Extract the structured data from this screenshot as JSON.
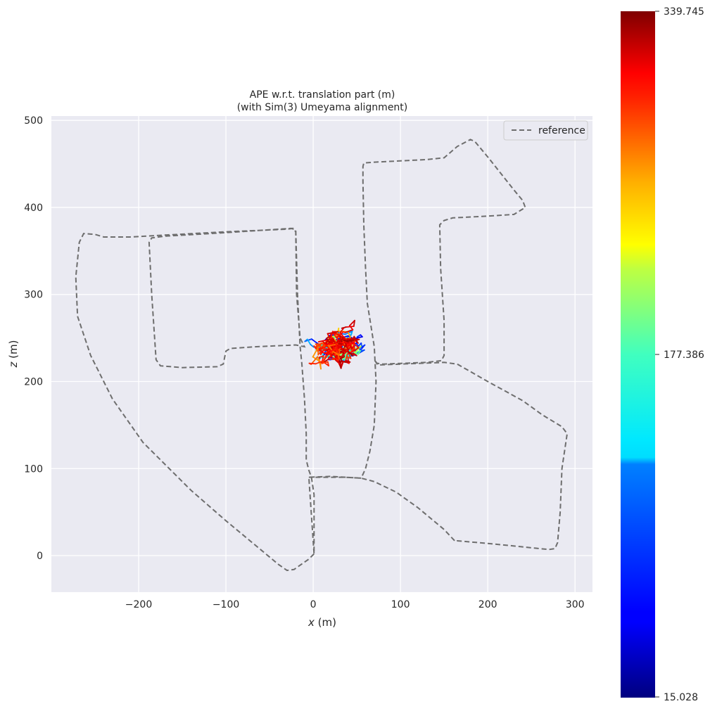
{
  "chart_data": {
    "type": "line",
    "title_line1": "APE w.r.t. translation part (m)",
    "title_line2": "(with Sim(3) Umeyama alignment)",
    "xlabel_var": "x",
    "xlabel_unit": " (m)",
    "ylabel_var": "z",
    "ylabel_unit": " (m)",
    "xlim": [
      -300,
      320
    ],
    "ylim": [
      -42,
      505
    ],
    "xticks": [
      -200,
      -100,
      0,
      100,
      200,
      300
    ],
    "xtick_labels": [
      "−200",
      "−100",
      "0",
      "100",
      "200",
      "300"
    ],
    "yticks": [
      0,
      100,
      200,
      300,
      400,
      500
    ],
    "ytick_labels": [
      "0",
      "100",
      "200",
      "300",
      "400",
      "500"
    ],
    "grid": true,
    "legend_position": "top-right",
    "colors": {
      "background": "#EAEAF2",
      "grid": "#FFFFFF",
      "reference": "#6E6E6E"
    },
    "colorbar": {
      "colormap": "jet",
      "min": 15.028,
      "mid": 177.386,
      "max": 339.745,
      "tick_labels": [
        "15.028",
        "177.386",
        "339.745"
      ]
    },
    "series": [
      {
        "name": "reference",
        "style": "dashed",
        "points": [
          [
            1,
            2
          ],
          [
            -5,
            -4
          ],
          [
            -22,
            -16
          ],
          [
            -30,
            -17
          ],
          [
            -40,
            -10
          ],
          [
            -100,
            40
          ],
          [
            -140,
            75
          ],
          [
            -195,
            130
          ],
          [
            -230,
            180
          ],
          [
            -255,
            230
          ],
          [
            -270,
            275
          ],
          [
            -272,
            320
          ],
          [
            -268,
            360
          ],
          [
            -263,
            370
          ],
          [
            -250,
            369
          ],
          [
            -240,
            366
          ],
          [
            -210,
            366
          ],
          [
            -175,
            368
          ],
          [
            -100,
            372
          ],
          [
            -30,
            375
          ],
          [
            -23,
            376
          ],
          [
            -20,
            372
          ],
          [
            -19,
            300
          ],
          [
            -15,
            250
          ],
          [
            -10,
            240
          ],
          [
            -20,
            242
          ],
          [
            -65,
            240
          ],
          [
            -95,
            238
          ],
          [
            -100,
            235
          ],
          [
            -103,
            220
          ],
          [
            -110,
            217
          ],
          [
            -150,
            216
          ],
          [
            -175,
            218
          ],
          [
            -180,
            225
          ],
          [
            -185,
            300
          ],
          [
            -188,
            360
          ],
          [
            -185,
            365
          ],
          [
            -170,
            367
          ],
          [
            -100,
            371
          ],
          [
            -25,
            376
          ],
          [
            -20,
            374
          ],
          [
            -18,
            300
          ],
          [
            -15,
            240
          ],
          [
            -13,
            220
          ],
          [
            -10,
            180
          ],
          [
            -8,
            140
          ],
          [
            -8,
            110
          ],
          [
            -5,
            98
          ],
          [
            -2,
            90
          ],
          [
            1,
            70
          ],
          [
            1,
            30
          ],
          [
            1,
            2
          ],
          [
            -5,
            90
          ],
          [
            20,
            91
          ],
          [
            55,
            89
          ],
          [
            60,
            100
          ],
          [
            65,
            120
          ],
          [
            70,
            150
          ],
          [
            72,
            200
          ],
          [
            70,
            240
          ],
          [
            62,
            290
          ],
          [
            60,
            330
          ],
          [
            58,
            380
          ],
          [
            57,
            430
          ],
          [
            57,
            447
          ],
          [
            58,
            451
          ],
          [
            70,
            452
          ],
          [
            130,
            455
          ],
          [
            150,
            457
          ],
          [
            165,
            470
          ],
          [
            180,
            478
          ],
          [
            185,
            476
          ],
          [
            200,
            458
          ],
          [
            230,
            420
          ],
          [
            240,
            408
          ],
          [
            243,
            400
          ],
          [
            230,
            392
          ],
          [
            200,
            390
          ],
          [
            160,
            388
          ],
          [
            150,
            385
          ],
          [
            145,
            380
          ],
          [
            146,
            330
          ],
          [
            150,
            270
          ],
          [
            150,
            230
          ],
          [
            147,
            224
          ],
          [
            130,
            222
          ],
          [
            80,
            220
          ],
          [
            73,
            221
          ],
          [
            70,
            225
          ],
          [
            74,
            219
          ],
          [
            100,
            220
          ],
          [
            150,
            222
          ],
          [
            165,
            220
          ],
          [
            200,
            200
          ],
          [
            240,
            178
          ],
          [
            262,
            162
          ],
          [
            285,
            148
          ],
          [
            291,
            140
          ],
          [
            285,
            100
          ],
          [
            283,
            50
          ],
          [
            280,
            15
          ],
          [
            277,
            8
          ],
          [
            270,
            7
          ],
          [
            240,
            10
          ],
          [
            200,
            14
          ],
          [
            165,
            17
          ],
          [
            163,
            16
          ],
          [
            150,
            30
          ],
          [
            120,
            55
          ],
          [
            95,
            73
          ],
          [
            70,
            85
          ],
          [
            55,
            89
          ],
          [
            35,
            90
          ],
          [
            15,
            90
          ],
          [
            -5,
            90
          ]
        ]
      }
    ]
  }
}
